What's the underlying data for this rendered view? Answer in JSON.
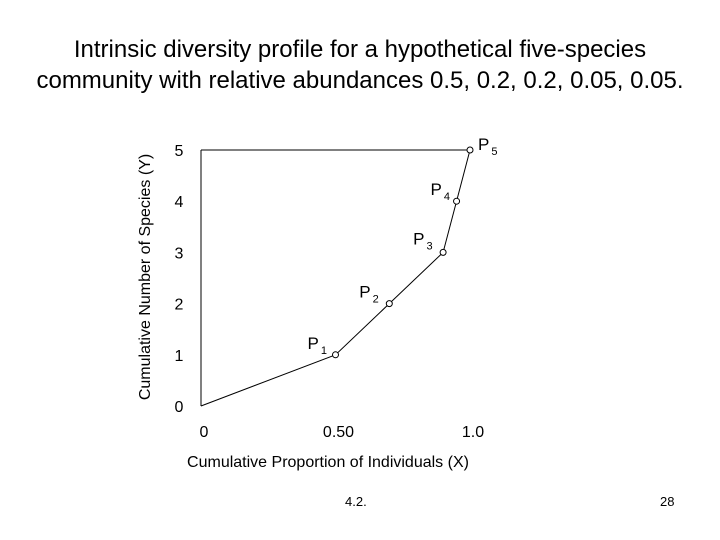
{
  "title_lines": [
    "Intrinsic diversity profile for a hypothetical five-species",
    "community with relative abundances 0.5, 0.2, 0.2, 0.05, 0.05."
  ],
  "footer": {
    "section": "4.2.",
    "page": "28"
  },
  "chart_data": {
    "type": "line",
    "xlabel": "Cumulative Proportion of Individuals (X)",
    "ylabel": "Cumulative Number of Species (Y)",
    "xlim": [
      0,
      1.0
    ],
    "ylim": [
      0,
      5
    ],
    "x_ticks": [
      {
        "value": 0,
        "label": "0"
      },
      {
        "value": 0.5,
        "label": "0.50"
      },
      {
        "value": 1.0,
        "label": "1.0"
      }
    ],
    "y_ticks": [
      {
        "value": 0,
        "label": "0"
      },
      {
        "value": 1,
        "label": "1"
      },
      {
        "value": 2,
        "label": "2"
      },
      {
        "value": 3,
        "label": "3"
      },
      {
        "value": 4,
        "label": "4"
      },
      {
        "value": 5,
        "label": "5"
      }
    ],
    "points": [
      {
        "x": 0,
        "y": 0,
        "label": ""
      },
      {
        "x": 0.5,
        "y": 1,
        "label": "P",
        "sub": "1"
      },
      {
        "x": 0.7,
        "y": 2,
        "label": "P",
        "sub": "2"
      },
      {
        "x": 0.9,
        "y": 3,
        "label": "P",
        "sub": "3"
      },
      {
        "x": 0.95,
        "y": 4,
        "label": "P",
        "sub": "4"
      },
      {
        "x": 1.0,
        "y": 5,
        "label": "P",
        "sub": "5"
      }
    ],
    "grid": false,
    "line_color": "#000000",
    "marker_fill": "#ffffff"
  }
}
